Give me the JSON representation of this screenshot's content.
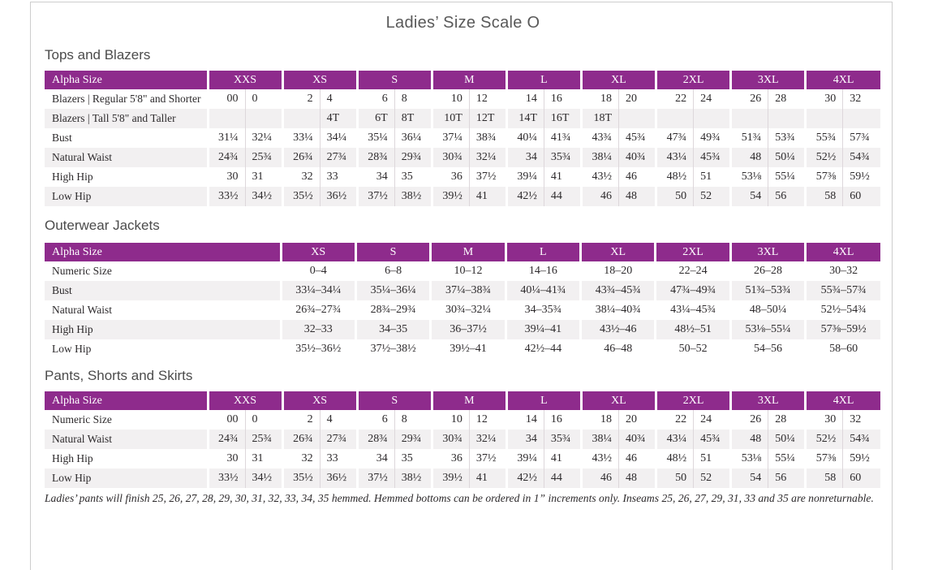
{
  "page": {
    "title": "Ladies’ Size Scale O",
    "footnote": "Ladies’ pants will finish 25, 26, 27, 28, 29, 30, 31, 32, 33, 34, 35 hemmed. Hemmed bottoms can be ordered in 1” increments only. Inseams 25, 26, 27, 29, 31, 33 and 35 are nonreturnable."
  },
  "colors": {
    "header_purple": "#8e2b8c",
    "stripe_gray": "#f2f0f1",
    "divider_gray": "#ddd7db",
    "heading_gray": "#4b4b4b",
    "title_gray": "#595959"
  },
  "tables": [
    {
      "heading": "Tops and Blazers",
      "label_header": "Alpha Size",
      "layout": "paired",
      "sizes": [
        "XXS",
        "XS",
        "S",
        "M",
        "L",
        "XL",
        "2XL",
        "3XL",
        "4XL"
      ],
      "rows": [
        {
          "label": "Blazers  |  Regular 5'8\" and Shorter",
          "cells": [
            [
              "00",
              "0"
            ],
            [
              "2",
              "4"
            ],
            [
              "6",
              "8"
            ],
            [
              "10",
              "12"
            ],
            [
              "14",
              "16"
            ],
            [
              "18",
              "20"
            ],
            [
              "22",
              "24"
            ],
            [
              "26",
              "28"
            ],
            [
              "30",
              "32"
            ]
          ]
        },
        {
          "label": "Blazers  |  Tall 5'8\" and Taller",
          "cells": [
            [
              "",
              ""
            ],
            [
              "",
              "4T"
            ],
            [
              "6T",
              "8T"
            ],
            [
              "10T",
              "12T"
            ],
            [
              "14T",
              "16T"
            ],
            [
              "18T",
              ""
            ],
            [
              "",
              ""
            ],
            [
              "",
              ""
            ],
            [
              "",
              ""
            ]
          ]
        },
        {
          "label": "Bust",
          "cells": [
            [
              "31¼",
              "32¼"
            ],
            [
              "33¼",
              "34¼"
            ],
            [
              "35¼",
              "36¼"
            ],
            [
              "37¼",
              "38¾"
            ],
            [
              "40¼",
              "41¾"
            ],
            [
              "43¾",
              "45¾"
            ],
            [
              "47¾",
              "49¾"
            ],
            [
              "51¾",
              "53¾"
            ],
            [
              "55¾",
              "57¾"
            ]
          ]
        },
        {
          "label": "Natural Waist",
          "cells": [
            [
              "24¾",
              "25¾"
            ],
            [
              "26¾",
              "27¾"
            ],
            [
              "28¾",
              "29¾"
            ],
            [
              "30¾",
              "32¼"
            ],
            [
              "34",
              "35¾"
            ],
            [
              "38¼",
              "40¾"
            ],
            [
              "43¼",
              "45¾"
            ],
            [
              "48",
              "50¼"
            ],
            [
              "52½",
              "54¾"
            ]
          ]
        },
        {
          "label": "High Hip",
          "cells": [
            [
              "30",
              "31"
            ],
            [
              "32",
              "33"
            ],
            [
              "34",
              "35"
            ],
            [
              "36",
              "37½"
            ],
            [
              "39¼",
              "41"
            ],
            [
              "43½",
              "46"
            ],
            [
              "48½",
              "51"
            ],
            [
              "53⅛",
              "55¼"
            ],
            [
              "57⅜",
              "59½"
            ]
          ]
        },
        {
          "label": "Low Hip",
          "cells": [
            [
              "33½",
              "34½"
            ],
            [
              "35½",
              "36½"
            ],
            [
              "37½",
              "38½"
            ],
            [
              "39½",
              "41"
            ],
            [
              "42½",
              "44"
            ],
            [
              "46",
              "48"
            ],
            [
              "50",
              "52"
            ],
            [
              "54",
              "56"
            ],
            [
              "58",
              "60"
            ]
          ]
        }
      ]
    },
    {
      "heading": "Outerwear Jackets",
      "label_header": "Alpha Size",
      "layout": "range",
      "sizes": [
        "XS",
        "S",
        "M",
        "L",
        "XL",
        "2XL",
        "3XL",
        "4XL"
      ],
      "rows": [
        {
          "label": "Numeric Size",
          "cells": [
            "0–4",
            "6–8",
            "10–12",
            "14–16",
            "18–20",
            "22–24",
            "26–28",
            "30–32"
          ]
        },
        {
          "label": "Bust",
          "cells": [
            "33¼–34¼",
            "35¼–36¼",
            "37¼–38¾",
            "40¼–41¾",
            "43¾–45¾",
            "47¾–49¾",
            "51¾–53¾",
            "55¾–57¾"
          ]
        },
        {
          "label": "Natural Waist",
          "cells": [
            "26¾–27¾",
            "28¾–29¾",
            "30¾–32¼",
            "34–35¾",
            "38¼–40¾",
            "43¼–45¾",
            "48–50¼",
            "52½–54¾"
          ]
        },
        {
          "label": "High Hip",
          "cells": [
            "32–33",
            "34–35",
            "36–37½",
            "39¼–41",
            "43½–46",
            "48½–51",
            "53⅛–55¼",
            "57⅜–59½"
          ]
        },
        {
          "label": "Low Hip",
          "cells": [
            "35½–36½",
            "37½–38½",
            "39½–41",
            "42½–44",
            "46–48",
            "50–52",
            "54–56",
            "58–60"
          ]
        }
      ]
    },
    {
      "heading": "Pants, Shorts and Skirts",
      "label_header": "Alpha Size",
      "layout": "paired",
      "sizes": [
        "XXS",
        "XS",
        "S",
        "M",
        "L",
        "XL",
        "2XL",
        "3XL",
        "4XL"
      ],
      "rows": [
        {
          "label": "Numeric Size",
          "cells": [
            [
              "00",
              "0"
            ],
            [
              "2",
              "4"
            ],
            [
              "6",
              "8"
            ],
            [
              "10",
              "12"
            ],
            [
              "14",
              "16"
            ],
            [
              "18",
              "20"
            ],
            [
              "22",
              "24"
            ],
            [
              "26",
              "28"
            ],
            [
              "30",
              "32"
            ]
          ]
        },
        {
          "label": "Natural Waist",
          "cells": [
            [
              "24¾",
              "25¾"
            ],
            [
              "26¾",
              "27¾"
            ],
            [
              "28¾",
              "29¾"
            ],
            [
              "30¾",
              "32¼"
            ],
            [
              "34",
              "35¾"
            ],
            [
              "38¼",
              "40¾"
            ],
            [
              "43¼",
              "45¾"
            ],
            [
              "48",
              "50¼"
            ],
            [
              "52½",
              "54¾"
            ]
          ]
        },
        {
          "label": "High Hip",
          "cells": [
            [
              "30",
              "31"
            ],
            [
              "32",
              "33"
            ],
            [
              "34",
              "35"
            ],
            [
              "36",
              "37½"
            ],
            [
              "39¼",
              "41"
            ],
            [
              "43½",
              "46"
            ],
            [
              "48½",
              "51"
            ],
            [
              "53⅛",
              "55¼"
            ],
            [
              "57⅜",
              "59½"
            ]
          ]
        },
        {
          "label": "Low Hip",
          "cells": [
            [
              "33½",
              "34½"
            ],
            [
              "35½",
              "36½"
            ],
            [
              "37½",
              "38½"
            ],
            [
              "39½",
              "41"
            ],
            [
              "42½",
              "44"
            ],
            [
              "46",
              "48"
            ],
            [
              "50",
              "52"
            ],
            [
              "54",
              "56"
            ],
            [
              "58",
              "60"
            ]
          ]
        }
      ]
    }
  ]
}
